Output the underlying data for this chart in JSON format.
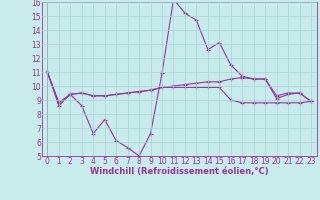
{
  "xlabel": "Windchill (Refroidissement éolien,°C)",
  "bg_color": "#c8ecec",
  "grid_color": "#a8d4d4",
  "line_color": "#993399",
  "spine_color": "#993399",
  "xlim": [
    -0.5,
    23.5
  ],
  "ylim": [
    5,
    16
  ],
  "xticks": [
    0,
    1,
    2,
    3,
    4,
    5,
    6,
    7,
    8,
    9,
    10,
    11,
    12,
    13,
    14,
    15,
    16,
    17,
    18,
    19,
    20,
    21,
    22,
    23
  ],
  "yticks": [
    5,
    6,
    7,
    8,
    9,
    10,
    11,
    12,
    13,
    14,
    15,
    16
  ],
  "line1_x": [
    0,
    1,
    2,
    3,
    4,
    5,
    6,
    7,
    8,
    9,
    10,
    11,
    12,
    13,
    14,
    15,
    16,
    17,
    18,
    19,
    20,
    21,
    22,
    23
  ],
  "line1_y": [
    11.0,
    8.6,
    9.4,
    8.6,
    6.6,
    7.6,
    6.1,
    5.6,
    5.0,
    6.6,
    10.9,
    16.2,
    15.2,
    14.7,
    12.6,
    13.1,
    11.5,
    10.7,
    10.5,
    10.5,
    9.1,
    9.4,
    9.5,
    8.9
  ],
  "line2_x": [
    0,
    1,
    2,
    3,
    4,
    5,
    6,
    7,
    8,
    9,
    10,
    11,
    12,
    13,
    14,
    15,
    16,
    17,
    18,
    19,
    20,
    21,
    22,
    23
  ],
  "line2_y": [
    11.0,
    8.8,
    9.4,
    9.5,
    9.3,
    9.3,
    9.4,
    9.5,
    9.6,
    9.7,
    9.9,
    10.0,
    10.1,
    10.2,
    10.3,
    10.3,
    10.5,
    10.6,
    10.5,
    10.5,
    9.3,
    9.5,
    9.5,
    8.9
  ],
  "line3_x": [
    0,
    1,
    2,
    3,
    4,
    5,
    6,
    7,
    8,
    9,
    10,
    11,
    12,
    13,
    14,
    15,
    16,
    17,
    18,
    19,
    20,
    21,
    22,
    23
  ],
  "line3_y": [
    11.0,
    8.8,
    9.4,
    9.5,
    9.3,
    9.3,
    9.4,
    9.5,
    9.6,
    9.7,
    9.9,
    9.9,
    9.9,
    9.9,
    9.9,
    9.9,
    9.0,
    8.8,
    8.8,
    8.8,
    8.8,
    8.8,
    8.8,
    8.9
  ],
  "tick_fontsize": 5.5,
  "label_fontsize": 6.0
}
